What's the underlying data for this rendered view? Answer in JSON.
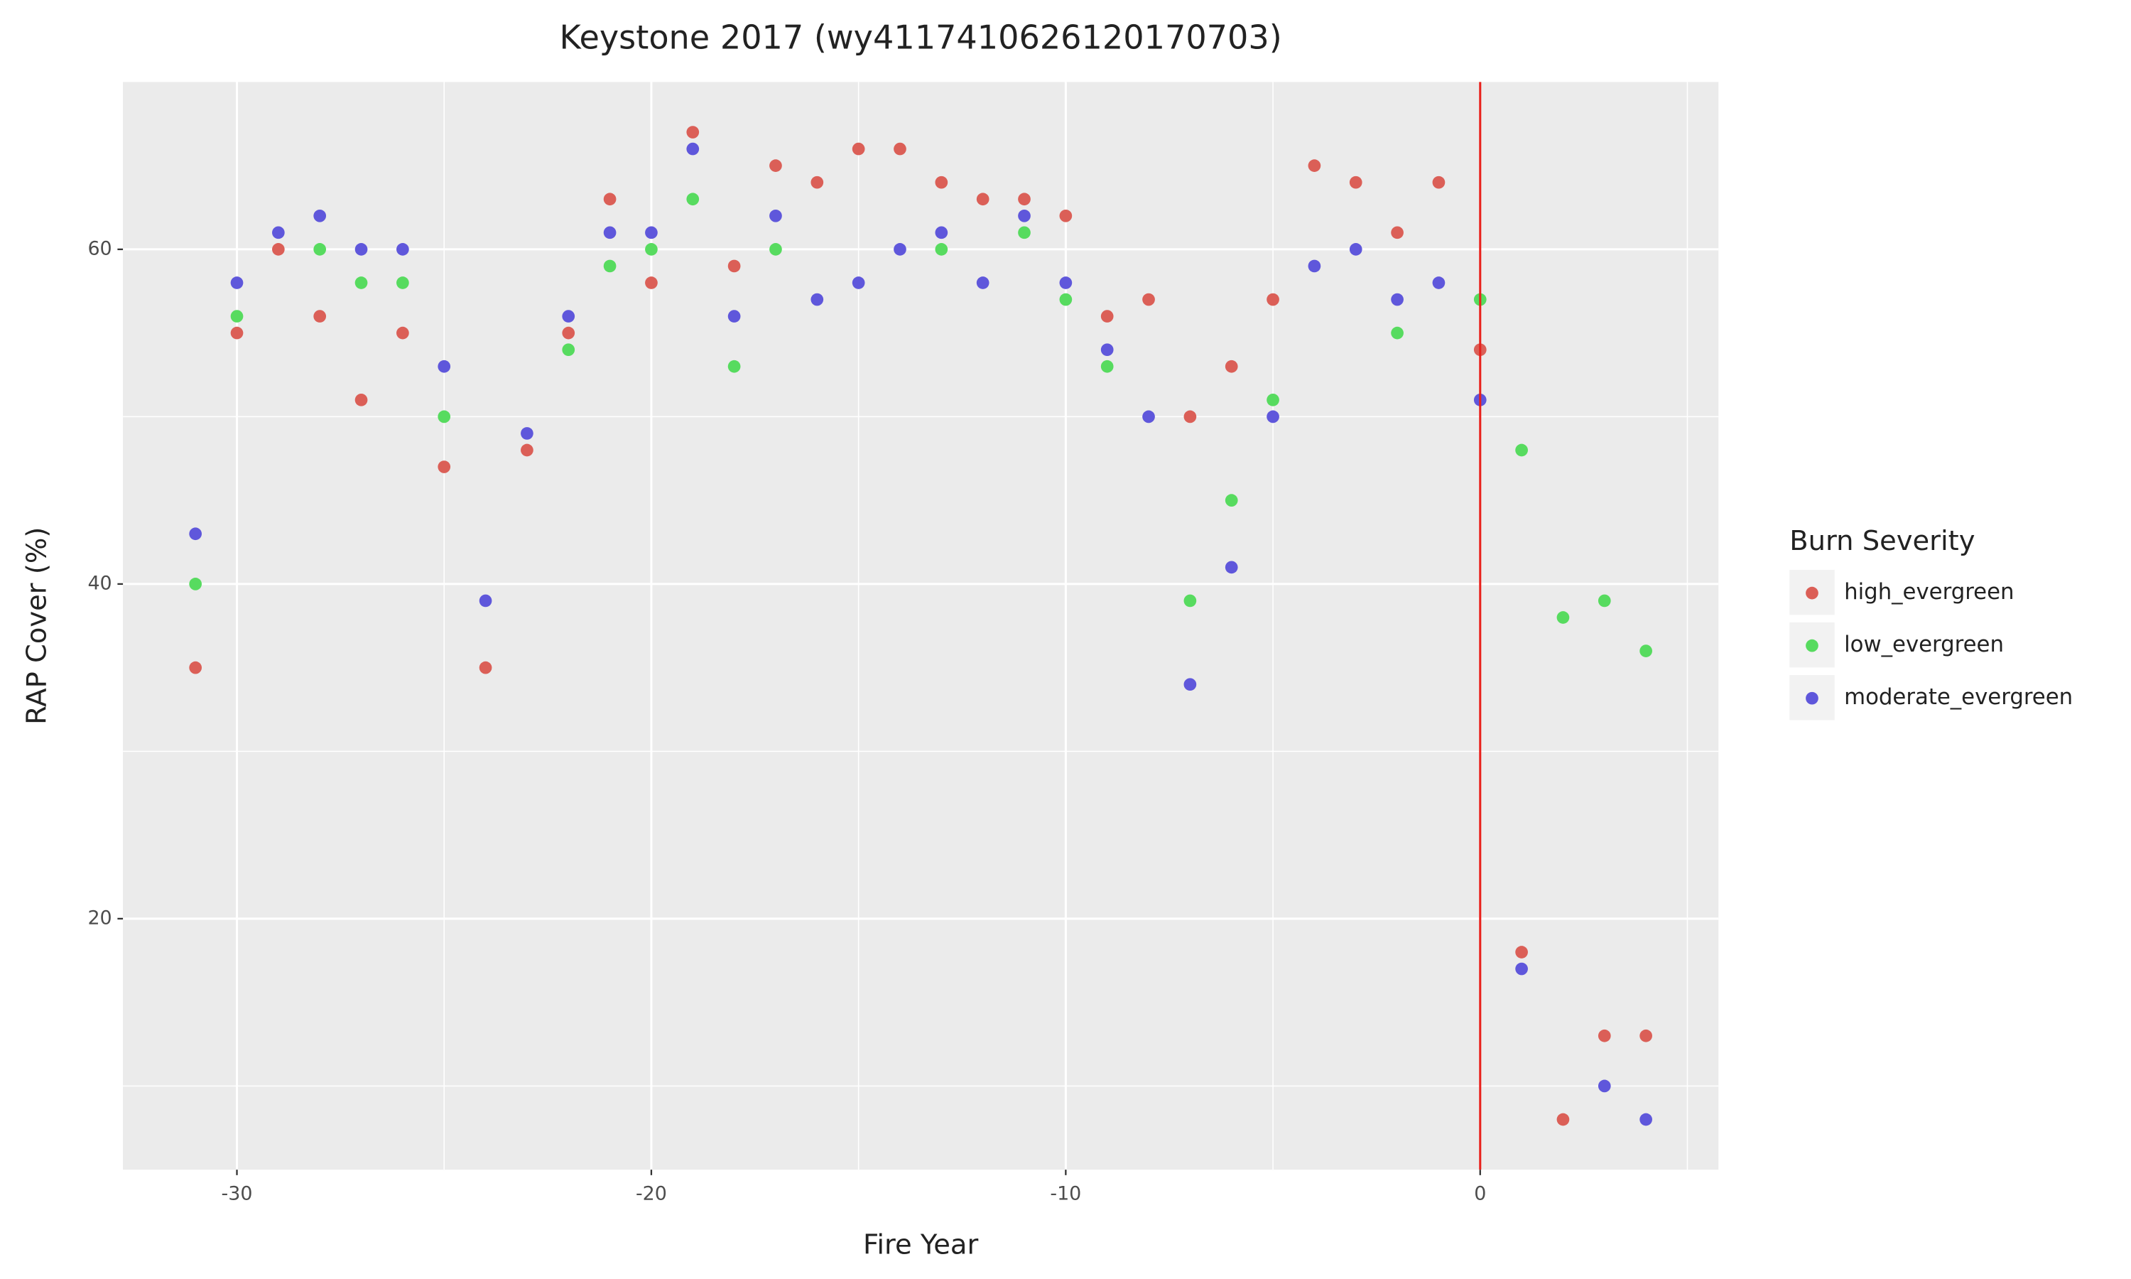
{
  "chart_data": {
    "type": "scatter",
    "title": "Keystone 2017 (wy4117410626120170703)",
    "x_label": "Fire Year",
    "y_label": "RAP Cover (%)",
    "legend_title": "Burn Severity",
    "legend_position": "right",
    "x": [
      -31,
      -30,
      -29,
      -28,
      -27,
      -26,
      -25,
      -24,
      -23,
      -22,
      -21,
      -20,
      -19,
      -18,
      -17,
      -16,
      -15,
      -14,
      -13,
      -12,
      -11,
      -10,
      -9,
      -8,
      -7,
      -6,
      -5,
      -4,
      -3,
      -2,
      -1,
      0,
      1,
      2,
      3,
      4
    ],
    "series": [
      {
        "name": "high_evergreen",
        "color": "#db5f57",
        "values": [
          35,
          55,
          60,
          56,
          51,
          55,
          47,
          35,
          48,
          55,
          63,
          58,
          67,
          59,
          65,
          64,
          66,
          66,
          64,
          63,
          63,
          62,
          56,
          57,
          50,
          53,
          57,
          65,
          64,
          61,
          64,
          54,
          18,
          8,
          13,
          13
        ]
      },
      {
        "name": "low_evergreen",
        "color": "#57db5f",
        "values": [
          40,
          56,
          null,
          60,
          58,
          58,
          50,
          null,
          null,
          54,
          59,
          60,
          63,
          53,
          60,
          null,
          null,
          null,
          60,
          null,
          61,
          57,
          53,
          null,
          39,
          45,
          51,
          null,
          null,
          55,
          null,
          57,
          48,
          38,
          39,
          36
        ]
      },
      {
        "name": "moderate_evergreen",
        "color": "#5f57db",
        "values": [
          43,
          58,
          61,
          62,
          60,
          60,
          53,
          39,
          49,
          56,
          61,
          61,
          66,
          56,
          62,
          57,
          58,
          60,
          61,
          58,
          62,
          58,
          54,
          50,
          34,
          41,
          50,
          59,
          60,
          57,
          58,
          51,
          17,
          null,
          10,
          8
        ]
      }
    ],
    "xlim": [
      -32.75,
      5.75
    ],
    "ylim": [
      5,
      70
    ],
    "xticks": [
      -30,
      -20,
      -10,
      0
    ],
    "yticks": [
      20,
      40,
      60
    ],
    "x_minor_ticks": [
      -25,
      -15,
      -5,
      5
    ],
    "y_minor_ticks": [
      10,
      30,
      50
    ],
    "vline": {
      "x": 0,
      "color": "#e8211c"
    },
    "grid": true,
    "panel_color": "#ebebeb"
  }
}
